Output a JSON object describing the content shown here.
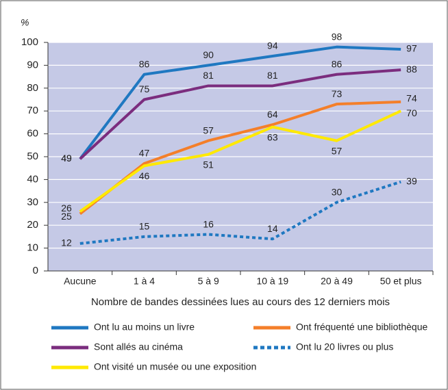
{
  "chart_data": {
    "type": "line",
    "y_label": "%",
    "x_label": "Nombre de bandes dessinées lues au cours des 12 derniers mois",
    "categories": [
      "Aucune",
      "1 à 4",
      "5 à 9",
      "10 à 19",
      "20 à 49",
      "50 et plus"
    ],
    "series": [
      {
        "name": "Ont lu au moins un livre",
        "color": "#1f78c1",
        "values": [
          49,
          86,
          90,
          94,
          98,
          97
        ]
      },
      {
        "name": "Ont fréquenté une bibliothèque",
        "color": "#f47f2a",
        "values": [
          25,
          47,
          57,
          64,
          73,
          74
        ]
      },
      {
        "name": "Sont allés au cinéma",
        "color": "#7b2d7e",
        "values": [
          49,
          75,
          81,
          81,
          86,
          88
        ]
      },
      {
        "name": "Ont lu 20 livres ou plus",
        "color": "#1f78c1",
        "line_style": "dotted",
        "values": [
          12,
          15,
          16,
          14,
          30,
          39
        ]
      },
      {
        "name": "Ont visité un musée ou une exposition",
        "color": "#ffe900",
        "values": [
          26,
          46,
          51,
          63,
          57,
          70
        ]
      }
    ],
    "ylim": [
      0,
      100
    ],
    "yticks": [
      0,
      10,
      20,
      30,
      40,
      50,
      60,
      70,
      80,
      90,
      100
    ],
    "grid": true
  }
}
